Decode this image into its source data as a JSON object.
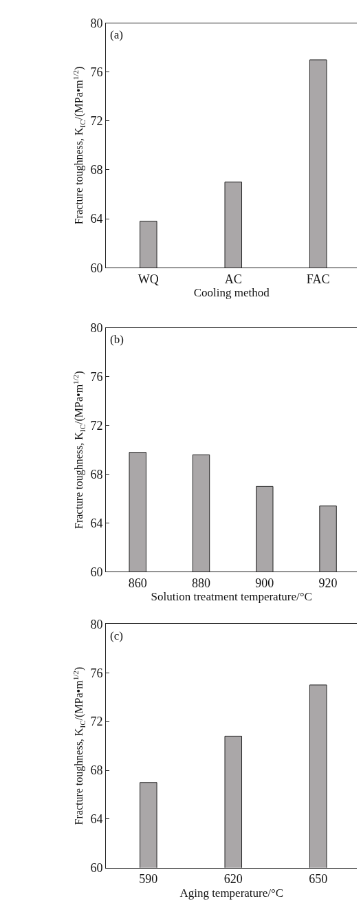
{
  "chart_data": [
    {
      "type": "bar",
      "categories": [
        "WQ",
        "AC",
        "FAC"
      ],
      "values": [
        63.8,
        67.0,
        77.0
      ],
      "color": "#aaa7a8",
      "xlabel": "Cooling method",
      "ylabel": "Fracture toughness, K$_{IC}$/(MPa•m$^{1/2}$)",
      "ylim": [
        60,
        80
      ],
      "yticks": [
        60,
        64,
        68,
        72,
        76,
        80
      ],
      "annotations": [
        "(a)"
      ]
    },
    {
      "type": "bar",
      "categories": [
        "860",
        "880",
        "900",
        "920"
      ],
      "values": [
        69.8,
        69.6,
        67.0,
        65.4
      ],
      "color": "#aaa7a8",
      "xlabel": "Solution treatment temperature/°C",
      "ylabel": "Fracture toughness, K$_{IC}$/(MPa•m$^{1/2}$)",
      "ylim": [
        60,
        80
      ],
      "yticks": [
        60,
        64,
        68,
        72,
        76,
        80
      ],
      "annotations": [
        "(b)"
      ]
    },
    {
      "type": "bar",
      "categories": [
        "590",
        "620",
        "650"
      ],
      "values": [
        67.0,
        70.8,
        75.0
      ],
      "color": "#aaa7a8",
      "xlabel": "Aging temperature/°C",
      "ylabel": "Fracture toughness, K$_{IC}$/(MPa•m$^{1/2}$)",
      "ylim": [
        60,
        80
      ],
      "yticks": [
        60,
        64,
        68,
        72,
        76,
        80
      ],
      "annotations": [
        "(c)"
      ]
    }
  ]
}
